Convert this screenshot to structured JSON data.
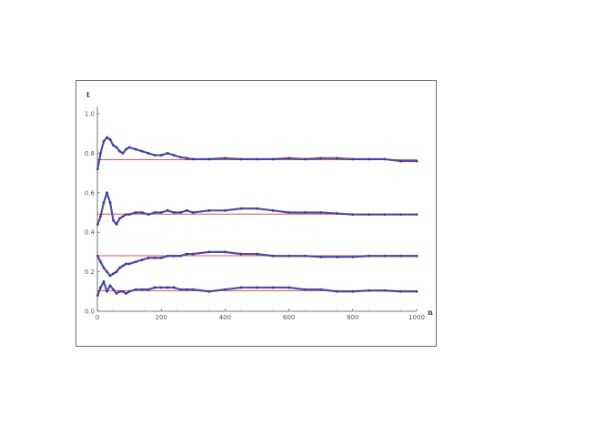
{
  "chart_data": {
    "type": "scatter",
    "title": "",
    "xlabel": "n",
    "ylabel": "t",
    "xlim": [
      0,
      1000
    ],
    "ylim": [
      0,
      1.0
    ],
    "xticks": [
      0,
      200,
      400,
      600,
      800,
      1000
    ],
    "xtick_labels": [
      "0",
      "200",
      "400",
      "600",
      "800",
      "1000"
    ],
    "yticks": [
      0,
      0.2,
      0.4,
      0.6,
      0.8,
      1.0
    ],
    "ytick_labels": [
      "0.0",
      "0.2",
      "0.4",
      "0.6",
      "0.8",
      "1.0"
    ],
    "grid": false,
    "reference_lines": [
      0.767,
      0.492,
      0.281,
      0.104
    ],
    "reference_color": "#e05050",
    "series_color": "#3c3c9c",
    "series": [
      {
        "x": [
          1,
          10,
          20,
          30,
          40,
          50,
          60,
          70,
          80,
          90,
          100,
          120,
          140,
          160,
          180,
          200,
          220,
          240,
          260,
          280,
          300,
          350,
          400,
          450,
          500,
          550,
          600,
          650,
          700,
          750,
          800,
          850,
          900,
          950,
          1000
        ],
        "y": [
          0.72,
          0.8,
          0.86,
          0.88,
          0.87,
          0.84,
          0.83,
          0.81,
          0.8,
          0.82,
          0.83,
          0.82,
          0.81,
          0.8,
          0.79,
          0.79,
          0.8,
          0.79,
          0.78,
          0.775,
          0.77,
          0.77,
          0.775,
          0.77,
          0.77,
          0.77,
          0.775,
          0.77,
          0.775,
          0.775,
          0.77,
          0.77,
          0.77,
          0.76,
          0.76
        ]
      },
      {
        "x": [
          1,
          10,
          20,
          30,
          40,
          50,
          60,
          70,
          80,
          90,
          100,
          120,
          140,
          160,
          180,
          200,
          220,
          240,
          260,
          280,
          300,
          350,
          400,
          450,
          500,
          550,
          600,
          650,
          700,
          750,
          800,
          850,
          900,
          950,
          1000
        ],
        "y": [
          0.44,
          0.48,
          0.55,
          0.6,
          0.55,
          0.46,
          0.44,
          0.47,
          0.48,
          0.49,
          0.49,
          0.5,
          0.5,
          0.49,
          0.5,
          0.5,
          0.51,
          0.5,
          0.5,
          0.51,
          0.5,
          0.51,
          0.51,
          0.52,
          0.52,
          0.51,
          0.5,
          0.5,
          0.5,
          0.495,
          0.49,
          0.49,
          0.49,
          0.49,
          0.49
        ]
      },
      {
        "x": [
          1,
          10,
          20,
          30,
          40,
          50,
          60,
          70,
          80,
          90,
          100,
          120,
          140,
          160,
          180,
          200,
          220,
          240,
          260,
          280,
          300,
          350,
          400,
          450,
          500,
          550,
          600,
          650,
          700,
          750,
          800,
          850,
          900,
          950,
          1000
        ],
        "y": [
          0.28,
          0.25,
          0.22,
          0.2,
          0.18,
          0.19,
          0.2,
          0.22,
          0.23,
          0.24,
          0.24,
          0.25,
          0.26,
          0.27,
          0.27,
          0.27,
          0.28,
          0.28,
          0.28,
          0.29,
          0.29,
          0.3,
          0.3,
          0.29,
          0.29,
          0.28,
          0.28,
          0.28,
          0.275,
          0.275,
          0.275,
          0.28,
          0.28,
          0.28,
          0.28
        ]
      },
      {
        "x": [
          1,
          10,
          20,
          30,
          40,
          50,
          60,
          70,
          80,
          90,
          100,
          120,
          140,
          160,
          180,
          200,
          220,
          240,
          260,
          280,
          300,
          350,
          400,
          450,
          500,
          550,
          600,
          650,
          700,
          750,
          800,
          850,
          900,
          950,
          1000
        ],
        "y": [
          0.08,
          0.12,
          0.15,
          0.1,
          0.13,
          0.11,
          0.09,
          0.1,
          0.1,
          0.09,
          0.1,
          0.11,
          0.11,
          0.11,
          0.12,
          0.12,
          0.12,
          0.12,
          0.11,
          0.11,
          0.11,
          0.1,
          0.11,
          0.12,
          0.12,
          0.12,
          0.12,
          0.11,
          0.11,
          0.1,
          0.1,
          0.105,
          0.105,
          0.1,
          0.1
        ]
      }
    ]
  }
}
